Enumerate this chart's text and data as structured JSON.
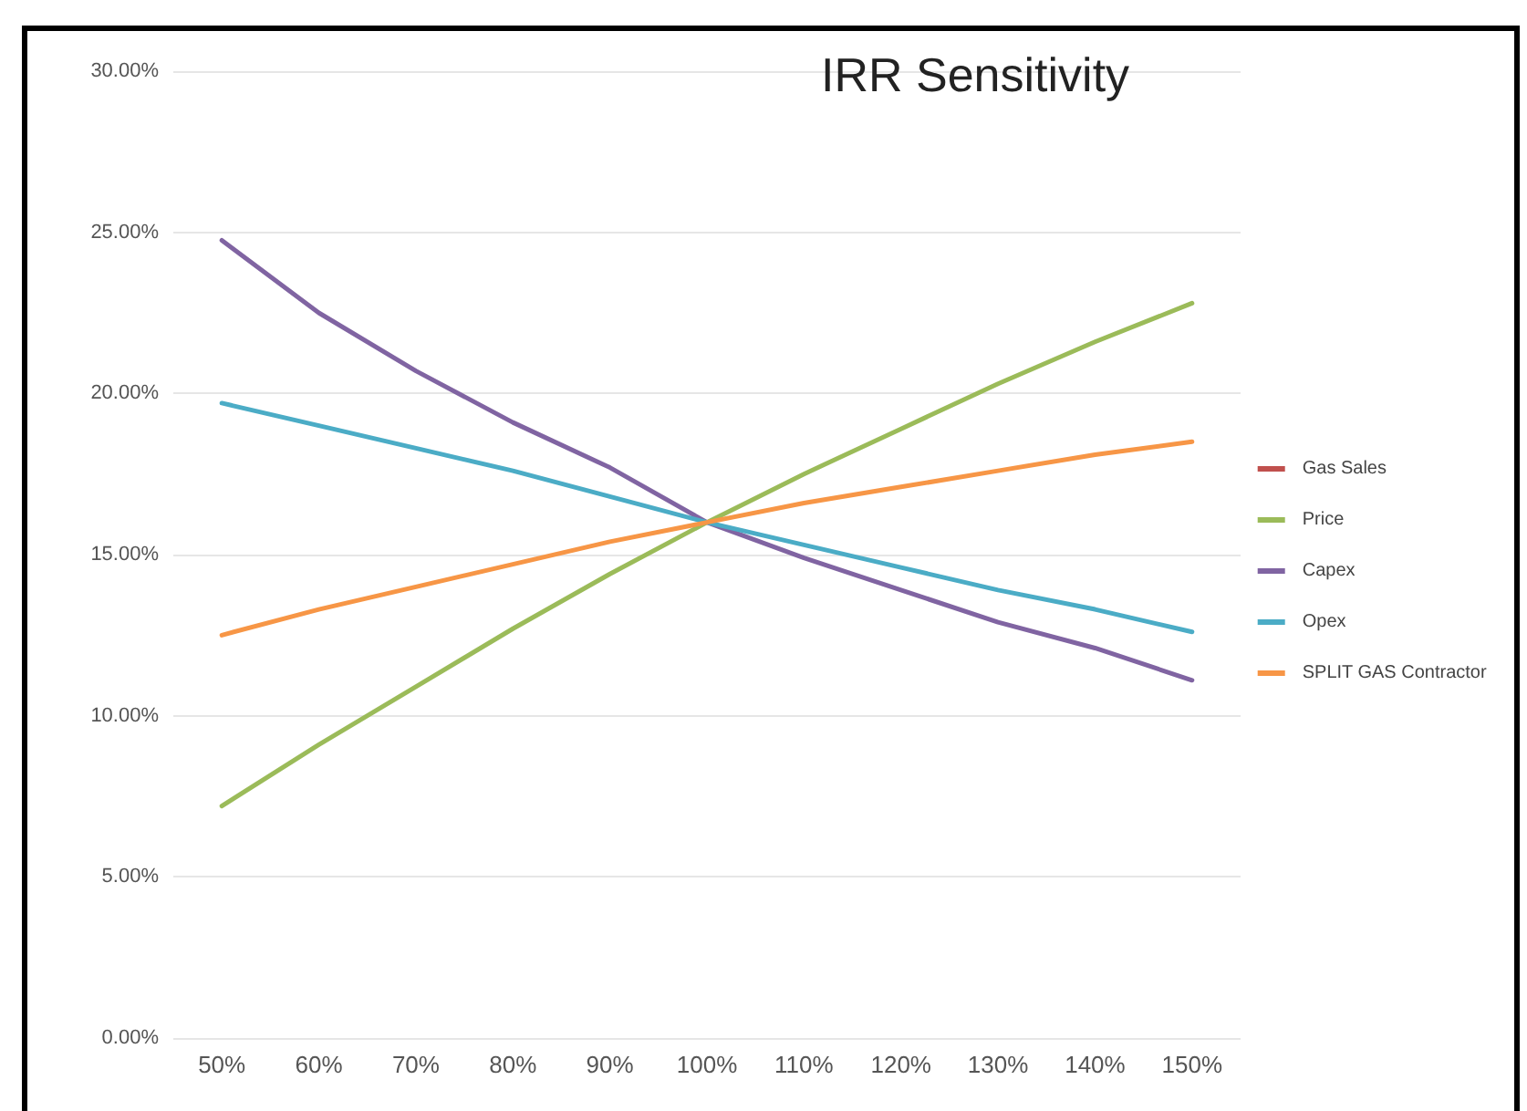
{
  "chart_data": {
    "type": "line",
    "title": "IRR Sensitivity",
    "categories": [
      "50%",
      "60%",
      "70%",
      "80%",
      "90%",
      "100%",
      "110%",
      "120%",
      "130%",
      "140%",
      "150%"
    ],
    "series": [
      {
        "name": "Gas Sales",
        "color": "#c0504d",
        "values": [
          null,
          null,
          null,
          null,
          null,
          null,
          null,
          null,
          null,
          null,
          null
        ]
      },
      {
        "name": "Price",
        "color": "#9bbb59",
        "values": [
          7.2,
          9.1,
          10.9,
          12.7,
          14.4,
          16.0,
          17.5,
          18.9,
          20.3,
          21.6,
          22.8
        ]
      },
      {
        "name": "Capex",
        "color": "#8064a2",
        "values": [
          24.75,
          22.5,
          20.7,
          19.1,
          17.7,
          16.0,
          14.9,
          13.9,
          12.9,
          12.1,
          11.1
        ]
      },
      {
        "name": "Opex",
        "color": "#4bacc6",
        "values": [
          19.7,
          19.0,
          18.3,
          17.6,
          16.8,
          16.0,
          15.3,
          14.6,
          13.9,
          13.3,
          12.6
        ]
      },
      {
        "name": "SPLIT GAS Contractor",
        "color": "#f79646",
        "values": [
          12.5,
          13.3,
          14.0,
          14.7,
          15.4,
          16.0,
          16.6,
          17.1,
          17.6,
          18.1,
          18.5
        ]
      }
    ],
    "ylim": [
      0,
      30
    ],
    "yticks": [
      {
        "value": 0,
        "label": "0.00%"
      },
      {
        "value": 5,
        "label": "5.00%"
      },
      {
        "value": 10,
        "label": "10.00%"
      },
      {
        "value": 15,
        "label": "15.00%"
      },
      {
        "value": 20,
        "label": "20.00%"
      },
      {
        "value": 25,
        "label": "25.00%"
      },
      {
        "value": 30,
        "label": "30.00%"
      }
    ],
    "grid": "y",
    "legend": "right",
    "marker": "none",
    "line_style": "solid"
  }
}
